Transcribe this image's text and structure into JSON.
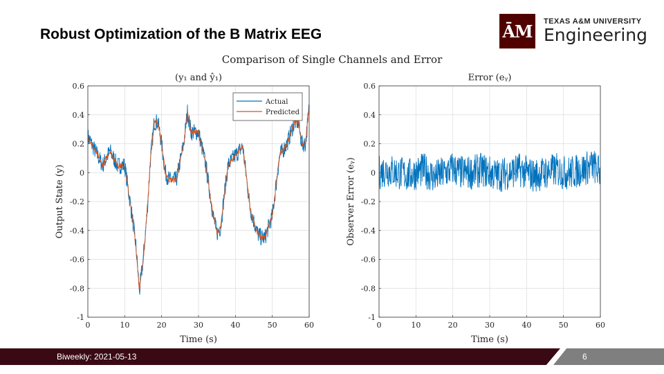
{
  "slide": {
    "title": "Robust Optimization of the B Matrix EEG",
    "logo_mark": "ĀM",
    "logo_university": "TEXAS A&M UNIVERSITY",
    "logo_department": "Engineering",
    "footer_text": "Biweekly: 2021-05-13",
    "page_number": "6",
    "colors": {
      "brand": "#500000",
      "footer_dark": "#3a0a14",
      "footer_grey": "#7f7f7f"
    }
  },
  "figure": {
    "suptitle": "Comparison of Single Channels and Error"
  },
  "chart_data": [
    {
      "type": "line",
      "title": "(y₁ and ŷ₁)",
      "xlabel": "Time (s)",
      "ylabel": "Output State (y)",
      "xlim": [
        0,
        60
      ],
      "ylim": [
        -1,
        0.6
      ],
      "xticks": [
        "0",
        "10",
        "20",
        "30",
        "40",
        "50",
        "60"
      ],
      "yticks": [
        "-1",
        "-0.8",
        "-0.6",
        "-0.4",
        "-0.2",
        "0",
        "0.2",
        "0.4",
        "0.6"
      ],
      "grid": true,
      "legend_position": "top-right",
      "x": [
        0,
        2,
        4,
        6,
        8,
        10,
        12,
        13,
        14,
        15,
        16,
        17,
        18,
        19,
        20,
        21,
        22,
        24,
        26,
        27,
        28,
        30,
        32,
        34,
        35,
        36,
        37,
        38,
        40,
        42,
        44,
        46,
        47,
        48,
        50,
        52,
        54,
        56,
        57,
        58,
        59,
        60
      ],
      "series": [
        {
          "name": "Actual",
          "color": "#0072BD",
          "noise_amplitude": 0.06,
          "values": [
            0.25,
            0.15,
            0.05,
            0.15,
            0.05,
            0.05,
            -0.3,
            -0.5,
            -0.82,
            -0.6,
            -0.3,
            0.1,
            0.35,
            0.35,
            0.2,
            0.0,
            -0.05,
            -0.05,
            0.2,
            0.42,
            0.28,
            0.28,
            0.05,
            -0.3,
            -0.42,
            -0.38,
            -0.15,
            0.05,
            0.12,
            0.18,
            -0.25,
            -0.42,
            -0.45,
            -0.45,
            -0.3,
            0.12,
            0.2,
            0.35,
            0.35,
            0.2,
            0.2,
            0.45
          ]
        },
        {
          "name": "Predicted",
          "color": "#D95319",
          "noise_amplitude": 0.02,
          "values": [
            0.25,
            0.15,
            0.05,
            0.15,
            0.05,
            0.05,
            -0.3,
            -0.5,
            -0.82,
            -0.6,
            -0.3,
            0.1,
            0.35,
            0.35,
            0.2,
            0.0,
            -0.05,
            -0.05,
            0.2,
            0.42,
            0.28,
            0.28,
            0.05,
            -0.3,
            -0.42,
            -0.38,
            -0.15,
            0.05,
            0.12,
            0.18,
            -0.25,
            -0.42,
            -0.45,
            -0.45,
            -0.3,
            0.12,
            0.2,
            0.35,
            0.35,
            0.2,
            0.2,
            0.45
          ]
        }
      ]
    },
    {
      "type": "line",
      "title": "Error (eᵧ)",
      "xlabel": "Time (s)",
      "ylabel": "Observer Error (eᵧ)",
      "xlim": [
        0,
        60
      ],
      "ylim": [
        -1,
        0.6
      ],
      "xticks": [
        "0",
        "10",
        "20",
        "30",
        "40",
        "50",
        "60"
      ],
      "yticks": [
        "-1",
        "-0.8",
        "-0.6",
        "-0.4",
        "-0.2",
        "0",
        "0.2",
        "0.4",
        "0.6"
      ],
      "grid": true,
      "x": [
        0,
        2,
        5,
        8,
        10,
        12,
        15,
        18,
        20,
        22,
        25,
        28,
        30,
        32,
        35,
        38,
        40,
        42,
        45,
        48,
        50,
        52,
        55,
        58,
        60
      ],
      "series": [
        {
          "color": "#0072BD",
          "noise_amplitude": 0.12,
          "values": [
            0,
            0.02,
            0.0,
            -0.02,
            0.0,
            0.02,
            -0.03,
            0.0,
            0.03,
            0.0,
            0.0,
            0.02,
            0.0,
            -0.02,
            0.0,
            0.02,
            0.0,
            -0.02,
            0.0,
            0.02,
            0.0,
            0.0,
            0.02,
            0.05,
            0.0
          ]
        }
      ]
    }
  ]
}
